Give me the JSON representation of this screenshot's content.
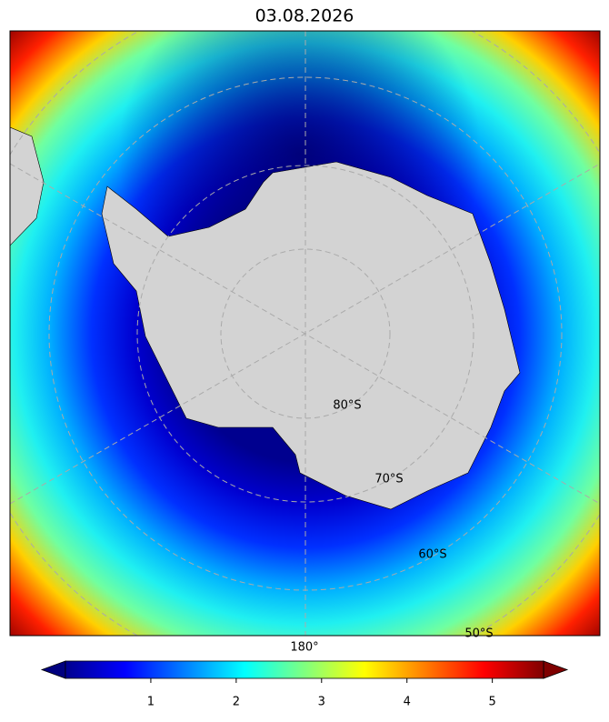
{
  "title": "03.08.2026",
  "map": {
    "lat_labels": [
      "80°S",
      "70°S",
      "60°S",
      "50°S"
    ],
    "lon_labels": [
      "180°"
    ]
  },
  "colorbar": {
    "lim": [
      0,
      5.6
    ],
    "ticks": [
      1,
      2,
      3,
      4,
      5
    ]
  }
}
